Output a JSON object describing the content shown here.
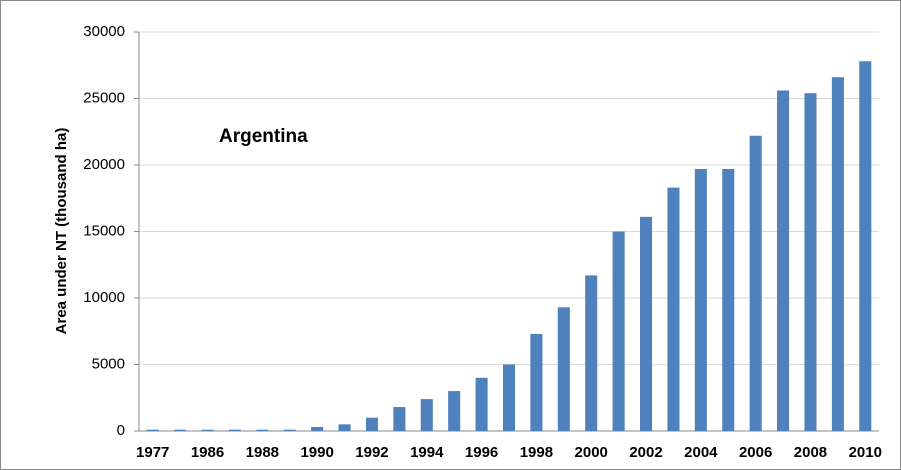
{
  "chart_data": {
    "type": "bar",
    "annotation": "Argentina",
    "y_label": "Area under NT (thousand ha)",
    "categories": [
      "1977",
      null,
      "1986",
      null,
      "1988",
      null,
      "1990",
      null,
      "1992",
      null,
      "1994",
      null,
      "1996",
      null,
      "1998",
      null,
      "2000",
      null,
      "2002",
      null,
      "2004",
      null,
      "2006",
      null,
      "2008",
      null,
      "2010"
    ],
    "values": [
      100,
      100,
      100,
      100,
      100,
      100,
      300,
      500,
      1000,
      1800,
      2400,
      3000,
      4000,
      5000,
      7300,
      9300,
      11700,
      15000,
      16100,
      18300,
      19700,
      19700,
      22200,
      25600,
      25400,
      26600,
      27800
    ],
    "color": "#4f81bd",
    "ylim": [
      0,
      30000
    ],
    "yticks": [
      0,
      5000,
      10000,
      15000,
      20000,
      25000,
      30000
    ],
    "grid": true
  }
}
